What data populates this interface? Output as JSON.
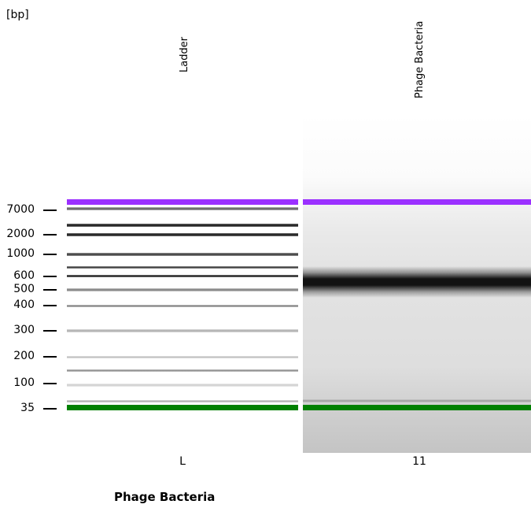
{
  "gel": {
    "unit_label": "[bp]",
    "caption": "Phage Bacteria",
    "lanes": [
      {
        "name": "Ladder",
        "id": "L"
      },
      {
        "name": "Phage Bacteria",
        "id": "11"
      }
    ],
    "size_markers": [
      {
        "label": "7000"
      },
      {
        "label": "2000"
      },
      {
        "label": "1000"
      },
      {
        "label": "600"
      },
      {
        "label": "500"
      },
      {
        "label": "400"
      },
      {
        "label": "300"
      },
      {
        "label": "200"
      },
      {
        "label": "100"
      },
      {
        "label": "35"
      }
    ],
    "colors": {
      "upper_marker": "#9b30ff",
      "lower_marker": "#008000",
      "band": "#111111"
    }
  }
}
